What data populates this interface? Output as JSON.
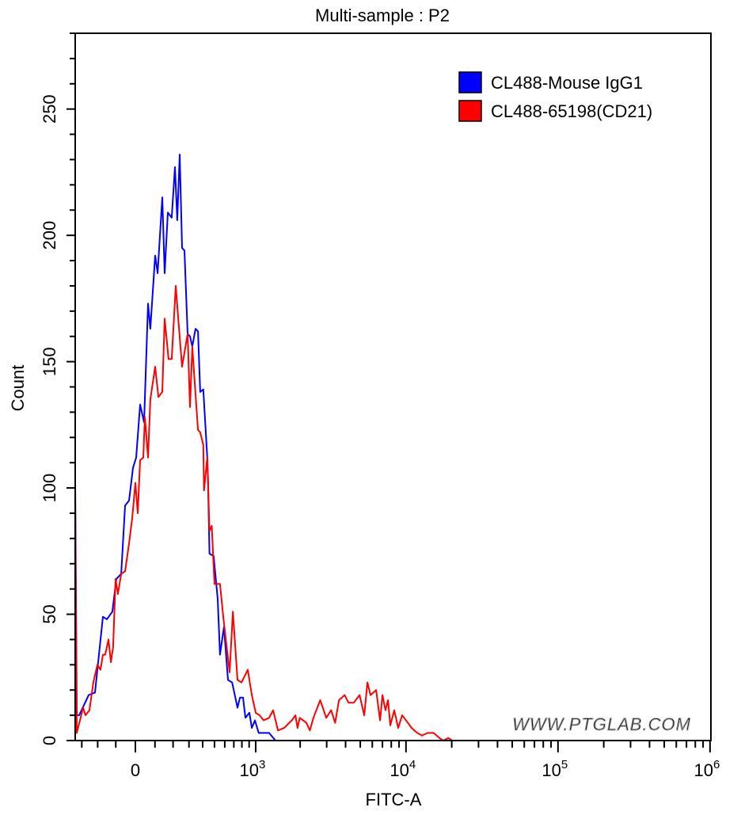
{
  "chart_data": {
    "type": "line",
    "title": "Multi-sample : P2",
    "xlabel": "FITC-A",
    "ylabel": "Count",
    "x_scale": "biexponential",
    "xlim": [
      -346,
      1000000
    ],
    "ylim": [
      0,
      280
    ],
    "x_tick_labels": [
      {
        "value": 0,
        "base": "0",
        "exp": ""
      },
      {
        "value": 1000,
        "base": "10",
        "exp": "3"
      },
      {
        "value": 10000,
        "base": "10",
        "exp": "4"
      },
      {
        "value": 100000,
        "base": "10",
        "exp": "5"
      },
      {
        "value": 1000000,
        "base": "10",
        "exp": "6"
      }
    ],
    "y_ticks": [
      0,
      50,
      100,
      150,
      200,
      250
    ],
    "grid": false,
    "legend_position": "top-right",
    "series": [
      {
        "name": "CL488-Mouse IgG1",
        "color": "#0000ff",
        "points": [
          [
            -346,
            102
          ],
          [
            -335,
            10
          ],
          [
            -318,
            10
          ],
          [
            -255,
            18
          ],
          [
            -216,
            19
          ],
          [
            -170,
            49
          ],
          [
            -148,
            48
          ],
          [
            -118,
            51
          ],
          [
            -97,
            64
          ],
          [
            -72,
            66
          ],
          [
            -52,
            93
          ],
          [
            -32,
            95
          ],
          [
            -12,
            108
          ],
          [
            4,
            112
          ],
          [
            24,
            133
          ],
          [
            44,
            126
          ],
          [
            64,
            173
          ],
          [
            76,
            163
          ],
          [
            101,
            192
          ],
          [
            114,
            185
          ],
          [
            139,
            215
          ],
          [
            152,
            185
          ],
          [
            170,
            209
          ],
          [
            192,
            207
          ],
          [
            211,
            227
          ],
          [
            225,
            206
          ],
          [
            240,
            232
          ],
          [
            255,
            195
          ],
          [
            270,
            194
          ],
          [
            291,
            161
          ],
          [
            307,
            160
          ],
          [
            323,
            156
          ],
          [
            346,
            163
          ],
          [
            364,
            162
          ],
          [
            381,
            138
          ],
          [
            405,
            139
          ],
          [
            437,
            112
          ],
          [
            443,
            104
          ],
          [
            456,
            74
          ],
          [
            493,
            73
          ],
          [
            530,
            56
          ],
          [
            552,
            34
          ],
          [
            592,
            45
          ],
          [
            634,
            24
          ],
          [
            680,
            23
          ],
          [
            744,
            13
          ],
          [
            775,
            17
          ],
          [
            815,
            17
          ],
          [
            848,
            9
          ],
          [
            904,
            11
          ],
          [
            940,
            5
          ],
          [
            988,
            8
          ],
          [
            1050,
            3
          ],
          [
            1236,
            3
          ],
          [
            1366,
            0
          ]
        ]
      },
      {
        "name": "CL488-65198(CD21)",
        "color": "#ff0000",
        "points": [
          [
            -346,
            92
          ],
          [
            -335,
            3
          ],
          [
            -291,
            13
          ],
          [
            -276,
            10
          ],
          [
            -250,
            12
          ],
          [
            -226,
            23
          ],
          [
            -202,
            30
          ],
          [
            -184,
            28
          ],
          [
            -170,
            34
          ],
          [
            -157,
            34
          ],
          [
            -139,
            40
          ],
          [
            -126,
            31
          ],
          [
            -114,
            37
          ],
          [
            -101,
            64
          ],
          [
            -89,
            58
          ],
          [
            -72,
            66
          ],
          [
            -52,
            67
          ],
          [
            -32,
            78
          ],
          [
            -16,
            88
          ],
          [
            0,
            102
          ],
          [
            12,
            90
          ],
          [
            24,
            111
          ],
          [
            40,
            112
          ],
          [
            48,
            128
          ],
          [
            64,
            112
          ],
          [
            76,
            135
          ],
          [
            101,
            148
          ],
          [
            118,
            136
          ],
          [
            139,
            138
          ],
          [
            152,
            167
          ],
          [
            174,
            151
          ],
          [
            192,
            151
          ],
          [
            216,
            180
          ],
          [
            230,
            168
          ],
          [
            255,
            148
          ],
          [
            291,
            161
          ],
          [
            307,
            132
          ],
          [
            323,
            156
          ],
          [
            346,
            137
          ],
          [
            364,
            123
          ],
          [
            381,
            122
          ],
          [
            405,
            117
          ],
          [
            411,
            99
          ],
          [
            437,
            112
          ],
          [
            456,
            83
          ],
          [
            476,
            85
          ],
          [
            500,
            62
          ],
          [
            552,
            62
          ],
          [
            584,
            49
          ],
          [
            652,
            27
          ],
          [
            689,
            51
          ],
          [
            744,
            24
          ],
          [
            795,
            23
          ],
          [
            881,
            28
          ],
          [
            940,
            18
          ],
          [
            1000,
            11
          ],
          [
            1063,
            10
          ],
          [
            1135,
            8
          ],
          [
            1236,
            9
          ],
          [
            1316,
            12
          ],
          [
            1419,
            4
          ],
          [
            1560,
            5
          ],
          [
            1760,
            8
          ],
          [
            1860,
            10
          ],
          [
            1920,
            5
          ],
          [
            1990,
            9
          ],
          [
            2200,
            7
          ],
          [
            2320,
            4
          ],
          [
            2450,
            9
          ],
          [
            2720,
            16
          ],
          [
            2980,
            9
          ],
          [
            3210,
            12
          ],
          [
            3410,
            7
          ],
          [
            3620,
            16
          ],
          [
            3940,
            18
          ],
          [
            4180,
            15
          ],
          [
            4530,
            15
          ],
          [
            4950,
            18
          ],
          [
            5310,
            10
          ],
          [
            5570,
            23
          ],
          [
            5840,
            18
          ],
          [
            6360,
            20
          ],
          [
            6750,
            8
          ],
          [
            7000,
            18
          ],
          [
            7330,
            12
          ],
          [
            7610,
            16
          ],
          [
            7880,
            6
          ],
          [
            8370,
            12
          ],
          [
            8890,
            5
          ],
          [
            9440,
            10
          ],
          [
            10300,
            7
          ],
          [
            10900,
            5
          ],
          [
            11860,
            3
          ],
          [
            12750,
            2
          ],
          [
            13850,
            3
          ],
          [
            15200,
            3
          ],
          [
            16600,
            1
          ],
          [
            17600,
            0
          ],
          [
            19000,
            1
          ],
          [
            20200,
            0
          ]
        ]
      }
    ]
  },
  "watermark": "WWW.PTGLAB.COM"
}
